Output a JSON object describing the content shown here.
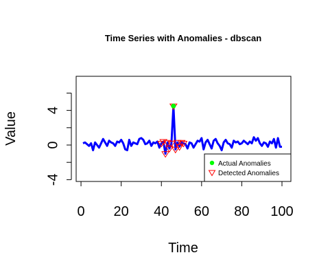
{
  "chart_data": {
    "type": "line",
    "title": "Time Series with Anomalies - dbscan",
    "xlabel": "Time",
    "ylabel": "Value",
    "xlim": [
      1,
      100
    ],
    "ylim": [
      -4,
      6
    ],
    "x_ticks": [
      0,
      20,
      40,
      60,
      80,
      100
    ],
    "y_ticks": [
      -4,
      0,
      4
    ],
    "grid": false,
    "legend_position": "bottom-right",
    "series": [
      {
        "color": "#0000ff",
        "x": [
          1,
          2,
          3,
          4,
          5,
          6,
          7,
          8,
          9,
          10,
          11,
          12,
          13,
          14,
          15,
          16,
          17,
          18,
          19,
          20,
          21,
          22,
          23,
          24,
          25,
          26,
          27,
          28,
          29,
          30,
          31,
          32,
          33,
          34,
          35,
          36,
          37,
          38,
          39,
          40,
          41,
          42,
          43,
          44,
          45,
          46,
          47,
          48,
          49,
          50,
          51,
          52,
          53,
          54,
          55,
          56,
          57,
          58,
          59,
          60,
          61,
          62,
          63,
          64,
          65,
          66,
          67,
          68,
          69,
          70,
          71,
          72,
          73,
          74,
          75,
          76,
          77,
          78,
          79,
          80,
          81,
          82,
          83,
          84,
          85,
          86,
          87,
          88,
          89,
          90,
          91,
          92,
          93,
          94,
          95,
          96,
          97,
          98,
          99,
          100
        ],
        "values": [
          0.2,
          0.3,
          0.1,
          -0.1,
          0.2,
          -0.6,
          0.3,
          0.0,
          -0.3,
          0.2,
          0.7,
          0.3,
          -0.1,
          0.5,
          0.3,
          0.2,
          -0.1,
          0.4,
          0.3,
          0.6,
          0.2,
          -0.5,
          -0.6,
          0.6,
          -0.1,
          0.3,
          0.2,
          0.1,
          0.7,
          0.8,
          0.6,
          0.1,
          0.2,
          0.5,
          -0.1,
          0.3,
          0.2,
          0.4,
          -0.3,
          0.2,
          0.4,
          -1.0,
          0.3,
          -0.4,
          0.2,
          4.5,
          -0.5,
          0.3,
          -0.2,
          0.3,
          0.2,
          0.1,
          -0.4,
          0.3,
          0.2,
          -0.3,
          0.1,
          0.5,
          0.4,
          0.8,
          -0.5,
          0.3,
          0.6,
          0.1,
          -0.4,
          0.5,
          0.7,
          0.2,
          -0.1,
          -0.6,
          0.3,
          0.6,
          0.2,
          0.1,
          -0.3,
          0.5,
          0.3,
          0.4,
          0.1,
          0.2,
          0.5,
          0.3,
          0.1,
          0.4,
          0.2,
          0.9,
          0.5,
          0.8,
          0.2,
          -0.1,
          0.3,
          0.2,
          -0.2,
          0.4,
          0.2,
          0.7,
          -0.3,
          0.8,
          -0.2,
          -0.2
        ]
      }
    ],
    "actual_anomalies": {
      "name": "Actual Anomalies",
      "color": "#00ff00",
      "points": [
        {
          "x": 46,
          "y": 4.5
        }
      ]
    },
    "detected_anomalies": {
      "name": "Detected Anomalies",
      "color": "#ff0000",
      "points": [
        {
          "x": 40,
          "y": 0.2
        },
        {
          "x": 41,
          "y": 0.4
        },
        {
          "x": 42,
          "y": -1.0
        },
        {
          "x": 43,
          "y": 0.3
        },
        {
          "x": 44,
          "y": -0.4
        },
        {
          "x": 45,
          "y": 0.2
        },
        {
          "x": 46,
          "y": 4.5
        },
        {
          "x": 47,
          "y": -0.5
        },
        {
          "x": 48,
          "y": 0.3
        },
        {
          "x": 49,
          "y": -0.2
        },
        {
          "x": 50,
          "y": 0.3
        },
        {
          "x": 51,
          "y": 0.2
        }
      ]
    }
  }
}
